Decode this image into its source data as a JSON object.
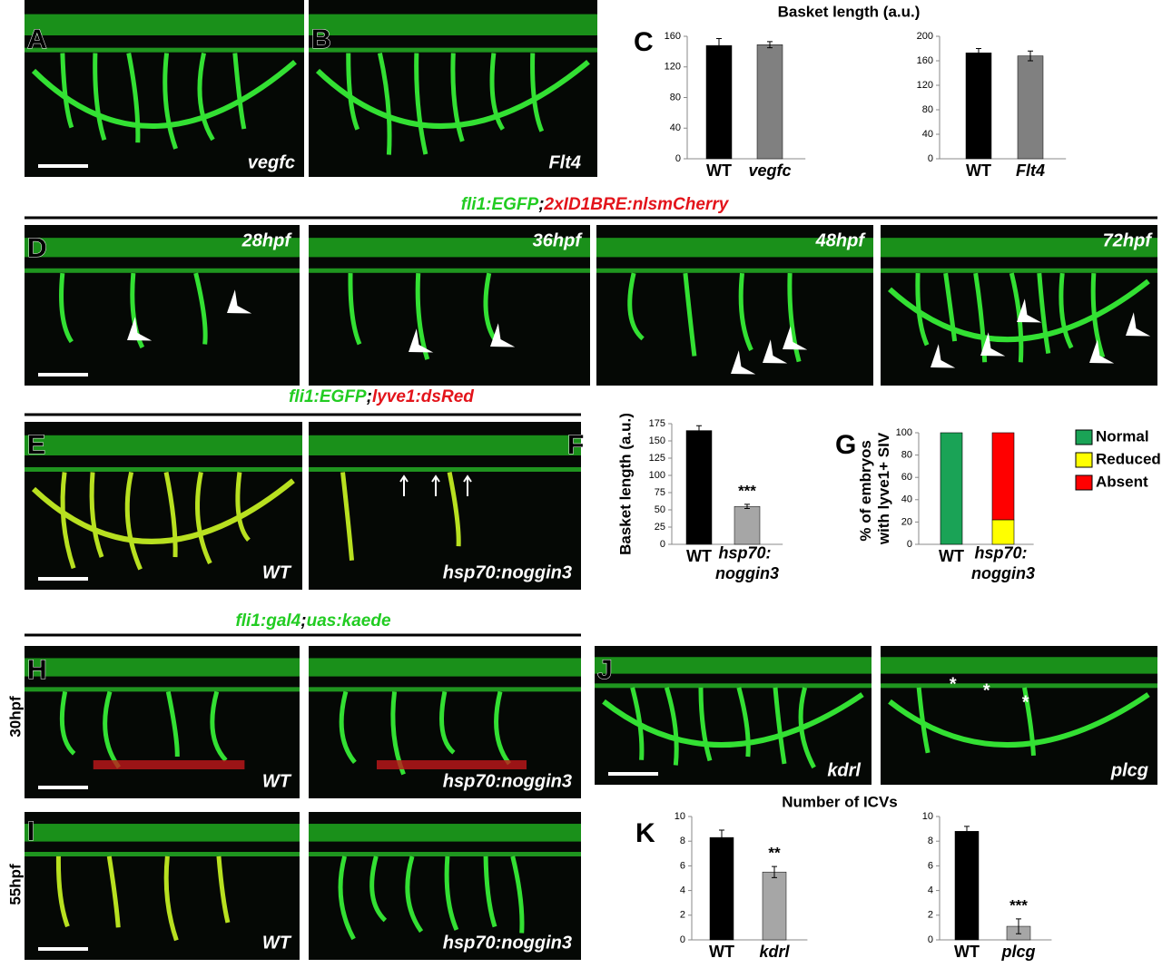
{
  "panel_letters": [
    "A",
    "B",
    "C",
    "D",
    "E",
    "F",
    "G",
    "H",
    "I",
    "J",
    "K"
  ],
  "basket_title": "Basket length (a.u.)",
  "icv_title": "Number of ICVs",
  "headings": [
    {
      "parts": [
        {
          "text": "fli1:EGFP",
          "color": "#22cc22"
        },
        {
          "text": ";",
          "color": "#000000"
        },
        {
          "text": "2xID1BRE:nlsmCherry",
          "color": "#e3141b"
        }
      ]
    },
    {
      "parts": [
        {
          "text": "fli1:EGFP",
          "color": "#22cc22"
        },
        {
          "text": ";",
          "color": "#000000"
        },
        {
          "text": "lyve1:dsRed",
          "color": "#e3141b"
        }
      ]
    },
    {
      "parts": [
        {
          "text": "fli1:gal4",
          "color": "#22cc22"
        },
        {
          "text": ";",
          "color": "#000000"
        },
        {
          "text": "uas:kaede",
          "color": "#22cc22"
        }
      ]
    }
  ],
  "image_labels": [
    "vegfc",
    "Flt4",
    "28hpf",
    "36hpf",
    "48hpf",
    "72hpf",
    "WT",
    "hsp70:noggin3",
    "WT",
    "hsp70:noggin3",
    "WT",
    "hsp70:noggin3",
    "kdrl",
    "plcg"
  ],
  "row_labels": [
    "30hpf",
    "55hpf"
  ],
  "asterisks": [
    "*",
    "*",
    "*"
  ],
  "chart_data": [
    {
      "type": "bar",
      "categories": [
        "WT",
        "vegfc"
      ],
      "values": [
        148,
        149
      ],
      "errors": [
        9,
        4
      ],
      "colors": [
        "#000000",
        "#808080"
      ],
      "ylim": [
        0,
        160
      ],
      "yticks": [
        0,
        40,
        80,
        120,
        160
      ]
    },
    {
      "type": "bar",
      "categories": [
        "WT",
        "Flt4"
      ],
      "values": [
        173,
        168
      ],
      "errors": [
        7,
        8
      ],
      "colors": [
        "#000000",
        "#808080"
      ],
      "ylim": [
        0,
        200
      ],
      "yticks": [
        0,
        40,
        80,
        120,
        160,
        200
      ]
    },
    {
      "type": "bar",
      "ylabel": "Basket length (a.u.)",
      "categories": [
        "WT",
        "hsp70: noggin3"
      ],
      "values": [
        165,
        55
      ],
      "errors": [
        7,
        3
      ],
      "colors": [
        "#000000",
        "#a6a6a6"
      ],
      "annotation": "***",
      "ylim": [
        0,
        175
      ],
      "yticks": [
        0,
        25,
        50,
        75,
        100,
        125,
        150,
        175
      ]
    },
    {
      "type": "stacked_bar",
      "ylabel": "% of embryos with lyve1+ SIV",
      "categories": [
        "WT",
        "hsp70: noggin3"
      ],
      "series": [
        {
          "name": "Normal",
          "color": "#1aa356",
          "values": [
            100,
            0
          ]
        },
        {
          "name": "Reduced",
          "color": "#ffff00",
          "values": [
            0,
            22
          ]
        },
        {
          "name": "Absent",
          "color": "#ff0000",
          "values": [
            0,
            78
          ]
        }
      ],
      "ylim": [
        0,
        100
      ],
      "yticks": [
        0,
        20,
        40,
        60,
        80,
        100
      ]
    },
    {
      "type": "bar",
      "categories": [
        "WT",
        "kdrl"
      ],
      "values": [
        8.3,
        5.5
      ],
      "errors": [
        0.6,
        0.45
      ],
      "colors": [
        "#000000",
        "#a6a6a6"
      ],
      "annotation": "**",
      "ylim": [
        0,
        10
      ],
      "yticks": [
        0,
        2,
        4,
        6,
        8,
        10
      ]
    },
    {
      "type": "bar",
      "categories": [
        "WT",
        "plcg"
      ],
      "values": [
        8.8,
        1.1
      ],
      "errors": [
        0.4,
        0.6
      ],
      "colors": [
        "#000000",
        "#a6a6a6"
      ],
      "annotation": "***",
      "ylim": [
        0,
        10
      ],
      "yticks": [
        0,
        2,
        4,
        6,
        8,
        10
      ]
    }
  ]
}
